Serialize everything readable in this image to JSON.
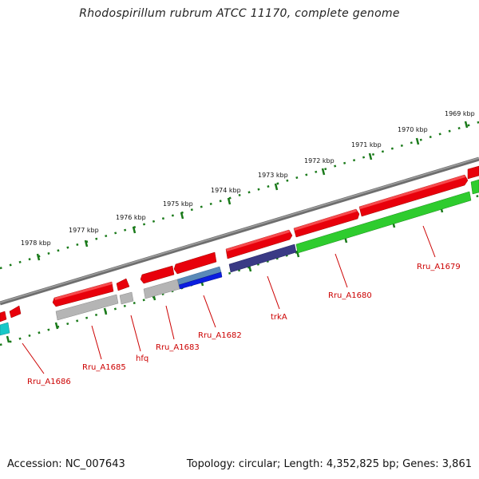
{
  "title": "Rhodospirillum rubrum ATCC 11170, complete genome",
  "accession": "Accession: NC_007643",
  "summary": "Topology: circular; Length: 4,352,825 bp; Genes: 3,861",
  "scale_labels": [
    "1969 kbp",
    "1970 kbp",
    "1971 kbp",
    "1972 kbp",
    "1973 kbp",
    "1974 kbp",
    "1975 kbp",
    "1976 kbp",
    "1977 kbp",
    "1978 kbp"
  ],
  "gene_labels": [
    "Rru_A1679",
    "Rru_A1680",
    "trkA",
    "Rru_A1682",
    "Rru_A1683",
    "hfq",
    "Rru_A1685",
    "Rru_A1686"
  ],
  "colors": {
    "backbone": "#7a7a7a",
    "forward_gene": "#e8000b",
    "cds_green": "#2ecc2e",
    "cds_grey": "#b5b5b5",
    "cds_blue": "#0a1ee0",
    "cds_steel": "#5a8ab8",
    "cds_navy": "#3a3a85",
    "cds_cyan": "#18c8c8",
    "tick": "#1a7a1a",
    "label": "#cc0000"
  }
}
